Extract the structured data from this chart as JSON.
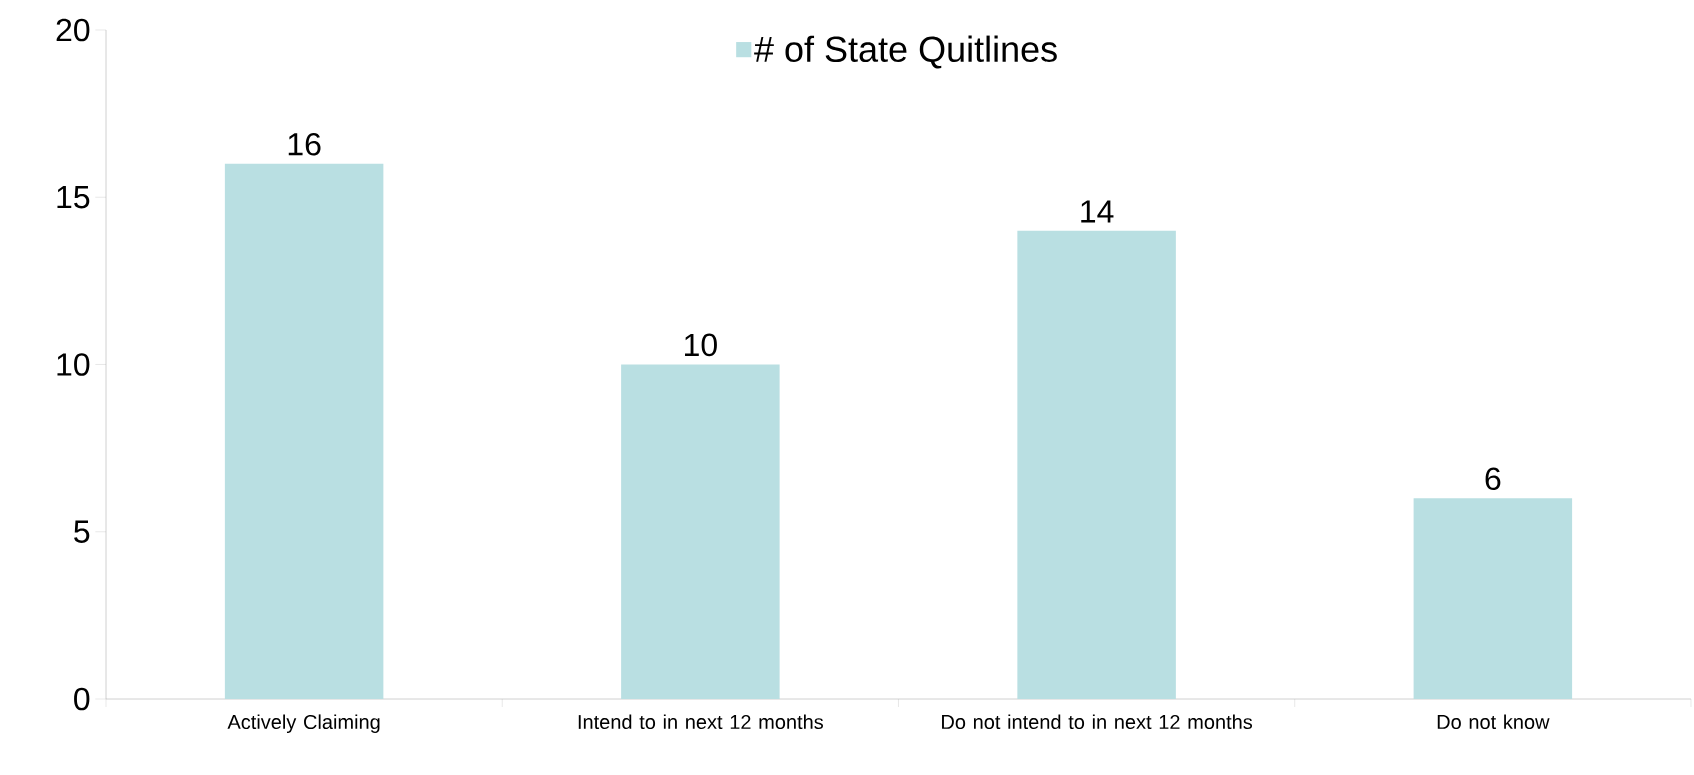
{
  "chart_data": {
    "type": "bar",
    "categories": [
      "Actively Claiming",
      "Intend to in next 12 months",
      "Do not intend to in next 12 months",
      "Do not know"
    ],
    "series": [
      {
        "name": "# of State Quitlines",
        "color": "#b9dfe2",
        "values": [
          16,
          10,
          14,
          6
        ]
      }
    ],
    "ylim": [
      0,
      20
    ],
    "yticks": [
      0,
      5,
      10,
      15,
      20
    ],
    "data_labels": true,
    "legend": "top",
    "grid": false
  }
}
